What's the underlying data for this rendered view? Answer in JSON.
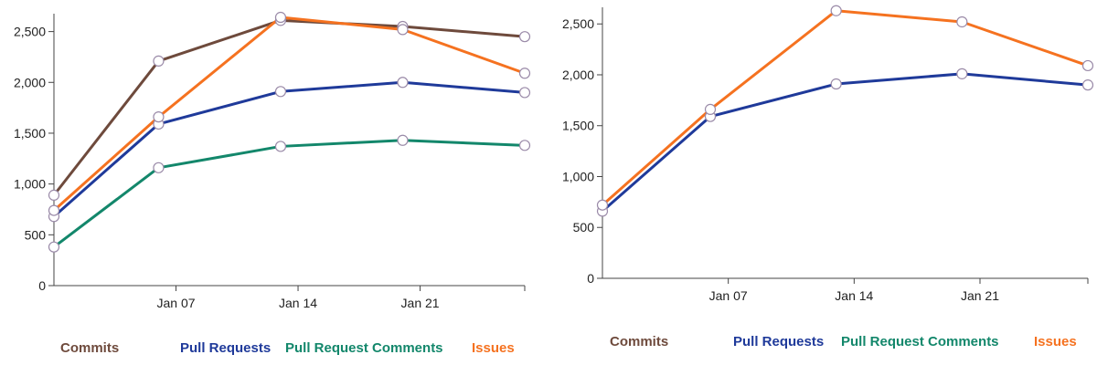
{
  "chart_data": [
    {
      "type": "line",
      "title": "",
      "xlabel": "",
      "ylabel": "",
      "ylim": [
        0,
        2650
      ],
      "y_ticks": [
        0,
        500,
        1000,
        1500,
        2000,
        2500
      ],
      "y_tick_labels": [
        "0",
        "500",
        "1,000",
        "1,500",
        "2,000",
        "2,500"
      ],
      "x_tick_labels": [
        "Jan 07",
        "Jan 14",
        "Jan 21"
      ],
      "grid": false,
      "legend_position": "bottom",
      "series": [
        {
          "name": "Commits",
          "color": "#6e4a3c",
          "x": [
            "Dec 31",
            "Jan 06",
            "Jan 13",
            "Jan 20",
            "Jan 27"
          ],
          "values": [
            890,
            2210,
            2610,
            2550,
            2450
          ]
        },
        {
          "name": "Pull Requests",
          "color": "#1f3a9a",
          "x": [
            "Dec 31",
            "Jan 06",
            "Jan 13",
            "Jan 20",
            "Jan 27"
          ],
          "values": [
            680,
            1590,
            1910,
            2000,
            1900
          ]
        },
        {
          "name": "Pull Request Comments",
          "color": "#13876b",
          "x": [
            "Dec 31",
            "Jan 06",
            "Jan 13",
            "Jan 20",
            "Jan 27"
          ],
          "values": [
            380,
            1160,
            1370,
            1430,
            1380
          ]
        },
        {
          "name": "Issues",
          "color": "#f57220",
          "x": [
            "Dec 31",
            "Jan 06",
            "Jan 13",
            "Jan 20",
            "Jan 27"
          ],
          "values": [
            740,
            1660,
            2640,
            2520,
            2090
          ]
        }
      ]
    },
    {
      "type": "line",
      "title": "",
      "xlabel": "",
      "ylabel": "",
      "ylim": [
        0,
        2650
      ],
      "y_ticks": [
        0,
        500,
        1000,
        1500,
        2000,
        2500
      ],
      "y_tick_labels": [
        "0",
        "500",
        "1,000",
        "1,500",
        "2,000",
        "2,500"
      ],
      "x_tick_labels": [
        "Jan 07",
        "Jan 14",
        "Jan 21"
      ],
      "grid": false,
      "legend_position": "bottom",
      "legend_entries": [
        {
          "name": "Commits",
          "color": "#6e4a3c"
        },
        {
          "name": "Pull Requests",
          "color": "#1f3a9a"
        },
        {
          "name": "Pull Request Comments",
          "color": "#13876b"
        },
        {
          "name": "Issues",
          "color": "#f57220"
        }
      ],
      "series": [
        {
          "name": "Pull Requests",
          "color": "#1f3a9a",
          "x": [
            "Dec 31",
            "Jan 06",
            "Jan 13",
            "Jan 20",
            "Jan 27"
          ],
          "values": [
            660,
            1590,
            1910,
            2010,
            1900
          ]
        },
        {
          "name": "Issues",
          "color": "#f57220",
          "x": [
            "Dec 31",
            "Jan 06",
            "Jan 13",
            "Jan 20",
            "Jan 27"
          ],
          "values": [
            720,
            1660,
            2630,
            2520,
            2090
          ]
        }
      ]
    }
  ]
}
